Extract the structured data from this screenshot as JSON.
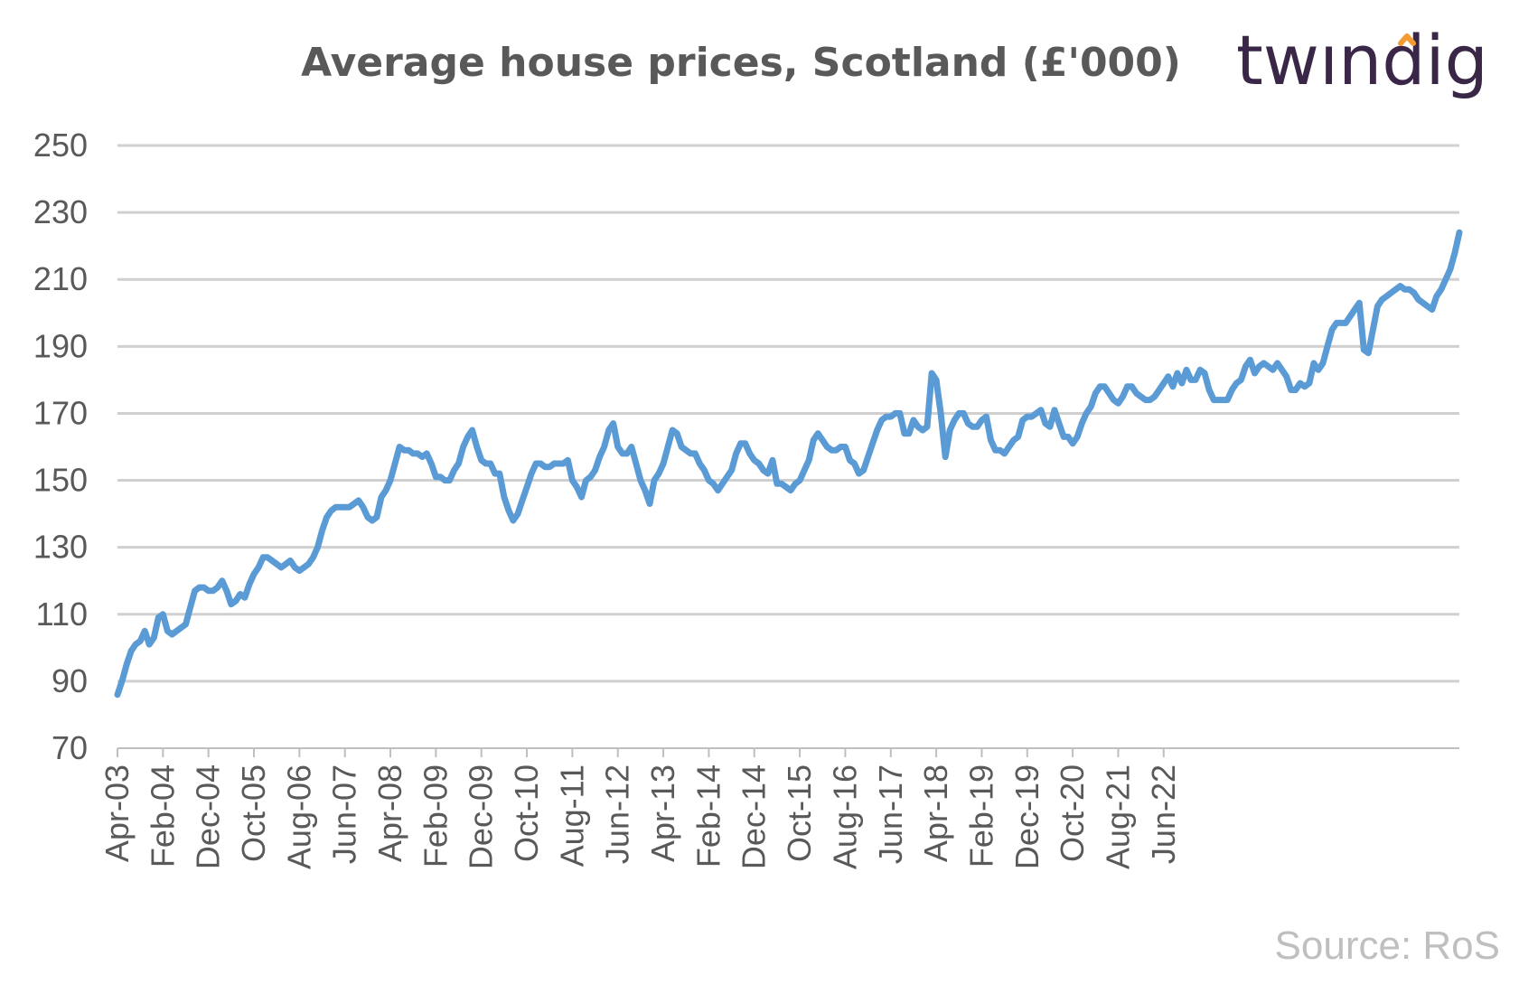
{
  "chart_data": {
    "type": "line",
    "title": "Average house prices, Scotland (£'000)",
    "xlabel": "",
    "ylabel": "",
    "ylim": [
      70,
      250
    ],
    "yticks": [
      250,
      230,
      210,
      190,
      170,
      150,
      130,
      110,
      90,
      70
    ],
    "xtick_labels": [
      "Apr-03",
      "Feb-04",
      "Dec-04",
      "Oct-05",
      "Aug-06",
      "Jun-07",
      "Apr-08",
      "Feb-09",
      "Dec-09",
      "Oct-10",
      "Aug-11",
      "Jun-12",
      "Apr-13",
      "Feb-14",
      "Dec-14",
      "Oct-15",
      "Aug-16",
      "Jun-17",
      "Apr-18",
      "Feb-19",
      "Dec-19",
      "Oct-20",
      "Aug-21",
      "Jun-22"
    ],
    "grid": true,
    "line_color": "#5b9bd5",
    "series": [
      {
        "x_start": "Apr-03",
        "x_end": "Jun-22",
        "values": [
          86,
          90,
          95,
          99,
          101,
          102,
          105,
          101,
          103,
          109,
          110,
          105,
          104,
          105,
          106,
          107,
          112,
          117,
          118,
          118,
          117,
          117,
          118,
          120,
          117,
          113,
          114,
          116,
          115,
          119,
          122,
          124,
          127,
          127,
          126,
          125,
          124,
          125,
          126,
          124,
          123,
          124,
          125,
          127,
          130,
          135,
          139,
          141,
          142,
          142,
          142,
          142,
          143,
          144,
          142,
          139,
          138,
          139,
          145,
          147,
          150,
          155,
          160,
          159,
          159,
          158,
          158,
          157,
          158,
          155,
          151,
          151,
          150,
          150,
          153,
          155,
          160,
          163,
          165,
          160,
          156,
          155,
          155,
          152,
          152,
          145,
          141,
          138,
          140,
          144,
          148,
          152,
          155,
          155,
          154,
          154,
          155,
          155,
          155,
          156,
          150,
          148,
          145,
          150,
          151,
          153,
          157,
          160,
          165,
          167,
          160,
          158,
          158,
          160,
          155,
          150,
          147,
          143,
          150,
          152,
          155,
          160,
          165,
          164,
          160,
          159,
          158,
          158,
          155,
          153,
          150,
          149,
          147,
          149,
          151,
          153,
          158,
          161,
          161,
          158,
          156,
          155,
          153,
          152,
          156,
          149,
          149,
          148,
          147,
          149,
          150,
          153,
          156,
          162,
          164,
          162,
          160,
          159,
          159,
          160,
          160,
          156,
          155,
          152,
          153,
          157,
          161,
          165,
          168,
          169,
          169,
          170,
          170,
          164,
          164,
          168,
          166,
          165,
          166,
          182,
          180,
          170,
          157,
          165,
          168,
          170,
          170,
          167,
          166,
          166,
          168,
          169,
          162,
          159,
          159,
          158,
          160,
          162,
          163,
          168,
          169,
          169,
          170,
          171,
          167,
          166,
          171,
          167,
          163,
          163,
          161,
          163,
          167,
          170,
          172,
          176,
          178,
          178,
          176,
          174,
          173,
          175,
          178,
          178,
          176,
          175,
          174,
          174,
          175,
          177,
          179,
          181,
          178,
          182,
          179,
          183,
          180,
          180,
          183,
          182,
          177,
          174,
          174,
          174,
          174,
          177,
          179,
          180,
          184,
          186,
          182,
          184,
          185,
          184,
          183,
          185,
          183,
          181,
          177,
          177,
          179,
          178,
          179,
          185,
          183,
          185,
          190,
          195,
          197,
          197,
          197,
          199,
          201,
          203,
          189,
          188,
          195,
          202,
          204,
          205,
          206,
          207,
          208,
          207,
          207,
          206,
          204,
          203,
          202,
          201,
          205,
          207,
          210,
          213,
          218,
          224
        ]
      }
    ]
  },
  "source": "Source: RoS",
  "logo": {
    "text": "twindig",
    "dot_color": "#f39c33"
  }
}
